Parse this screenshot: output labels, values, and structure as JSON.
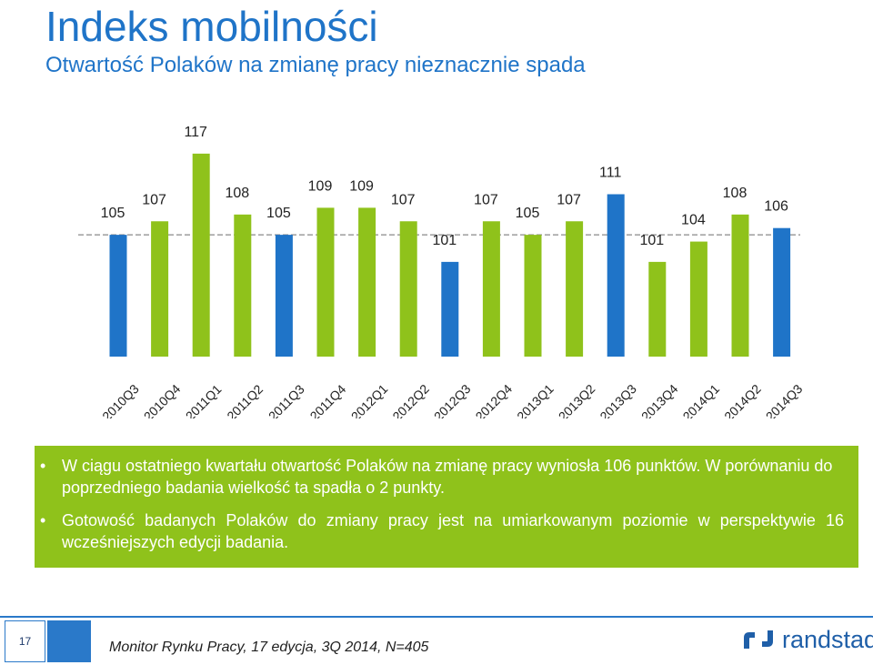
{
  "header": {
    "title": "Indeks mobilności",
    "subtitle": "Otwartość Polaków na zmianę pracy nieznacznie spada"
  },
  "chart_data": {
    "type": "bar",
    "categories": [
      "2010Q3",
      "2010Q4",
      "2011Q1",
      "2011Q2",
      "2011Q3",
      "2011Q4",
      "2012Q1",
      "2012Q2",
      "2012Q3",
      "2012Q4",
      "2013Q1",
      "2013Q2",
      "2013Q3",
      "2013Q4",
      "2014Q1",
      "2014Q2",
      "2014Q3"
    ],
    "values": [
      105,
      107,
      117,
      108,
      105,
      109,
      109,
      107,
      101,
      107,
      105,
      107,
      111,
      101,
      104,
      108,
      106
    ],
    "colors": [
      "#1f74c8",
      "#8fc21b",
      "#8fc21b",
      "#8fc21b",
      "#1f74c8",
      "#8fc21b",
      "#8fc21b",
      "#8fc21b",
      "#1f74c8",
      "#8fc21b",
      "#8fc21b",
      "#8fc21b",
      "#1f74c8",
      "#8fc21b",
      "#8fc21b",
      "#8fc21b",
      "#1f74c8"
    ],
    "reference_line": 105,
    "ylim": [
      87,
      119
    ],
    "title": "",
    "xlabel": "",
    "ylabel": "",
    "grid": false,
    "legend": false
  },
  "info": {
    "bullet1": "W ciągu ostatniego kwartału otwartość Polaków na zmianę pracy wyniosła 106 punktów. W porównaniu do poprzedniego badania wielkość ta spadła o 2 punkty.",
    "bullet2": "Gotowość badanych Polaków do zmiany pracy jest na umiarkowanym poziomie w perspektywie 16 wcześniejszych edycji badania."
  },
  "footer": {
    "page_number": "17",
    "source": "Monitor Rynku Pracy, 17 edycja, 3Q 2014, N=405",
    "logo_text": "randstad"
  },
  "colors": {
    "accent_blue": "#1f74c8",
    "accent_green": "#8fc21b"
  }
}
